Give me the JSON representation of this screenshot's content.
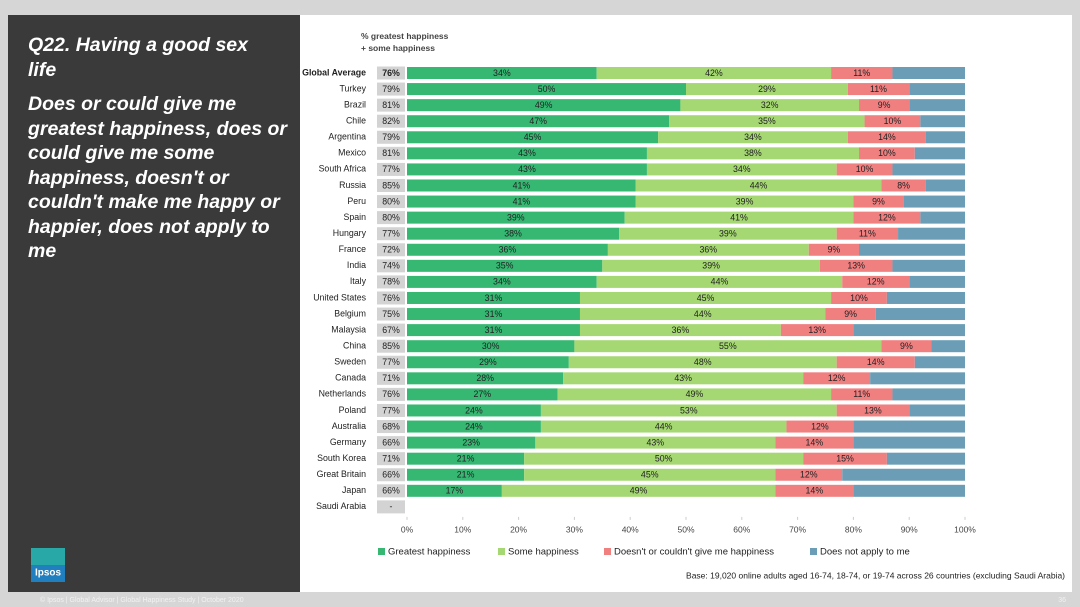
{
  "slide": {
    "title": "Q22. Having a good sex life",
    "question": "Does or could give me greatest happiness, does or could give me some happiness, doesn't or couldn't make me happy or happier, does not apply to me",
    "base_note": "Base: 19,020 online adults aged 16-74, 18-74, or 19-74 across 26 countries (excluding Saudi Arabia)",
    "footer": "© Ipsos | Global Advisor | Global Happiness Study | October 2020",
    "page_number": "36",
    "logo": "Ipsos"
  },
  "chart_data": {
    "type": "bar",
    "orientation": "horizontal",
    "stacked": true,
    "legend": "bottom",
    "score_header": "% greatest happiness + some happiness",
    "categories": [
      "Global Average",
      "Turkey",
      "Brazil",
      "Chile",
      "Argentina",
      "Mexico",
      "South Africa",
      "Russia",
      "Peru",
      "Spain",
      "Hungary",
      "France",
      "India",
      "Italy",
      "United States",
      "Belgium",
      "Malaysia",
      "China",
      "Sweden",
      "Canada",
      "Netherlands",
      "Poland",
      "Australia",
      "Germany",
      "South Korea",
      "Great Britain",
      "Japan",
      "Saudi Arabia"
    ],
    "scores": [
      76,
      79,
      81,
      82,
      79,
      81,
      77,
      85,
      80,
      80,
      77,
      72,
      74,
      78,
      76,
      75,
      67,
      85,
      77,
      71,
      76,
      77,
      68,
      66,
      71,
      66,
      66,
      null
    ],
    "score_labels": [
      "76%",
      "79%",
      "81%",
      "82%",
      "79%",
      "81%",
      "77%",
      "85%",
      "80%",
      "80%",
      "77%",
      "72%",
      "74%",
      "78%",
      "76%",
      "75%",
      "67%",
      "85%",
      "77%",
      "71%",
      "76%",
      "77%",
      "68%",
      "66%",
      "71%",
      "66%",
      "66%",
      "-"
    ],
    "series": [
      {
        "name": "Greatest happiness",
        "color": "#36b873",
        "values": [
          34,
          50,
          49,
          47,
          45,
          43,
          43,
          41,
          41,
          39,
          38,
          36,
          35,
          34,
          31,
          31,
          31,
          30,
          29,
          28,
          27,
          24,
          24,
          23,
          21,
          21,
          17,
          null
        ],
        "value_labels": [
          "34%",
          "50%",
          "49%",
          "47%",
          "45%",
          "43%",
          "43%",
          "41%",
          "41%",
          "39%",
          "38%",
          "36%",
          "35%",
          "34%",
          "31%",
          "31%",
          "31%",
          "30%",
          "29%",
          "28%",
          "27%",
          "24%",
          "24%",
          "23%",
          "21%",
          "21%",
          "17%",
          null
        ]
      },
      {
        "name": "Some happiness",
        "color": "#a5d873",
        "values": [
          42,
          29,
          32,
          35,
          34,
          38,
          34,
          44,
          39,
          41,
          39,
          36,
          39,
          44,
          45,
          44,
          36,
          55,
          48,
          43,
          49,
          53,
          44,
          43,
          50,
          45,
          49,
          null
        ],
        "value_labels": [
          "42%",
          "29%",
          "32%",
          "35%",
          "34%",
          "38%",
          "34%",
          "44%",
          "39%",
          "41%",
          "39%",
          "36%",
          "39%",
          "44%",
          "45%",
          "44%",
          "36%",
          "55%",
          "48%",
          "43%",
          "49%",
          "53%",
          "44%",
          "43%",
          "50%",
          "45%",
          "49%",
          null
        ]
      },
      {
        "name": "Doesn't or couldn't give me happiness",
        "color": "#f07f80",
        "values": [
          11,
          11,
          9,
          10,
          14,
          10,
          10,
          8,
          9,
          12,
          11,
          9,
          13,
          12,
          10,
          9,
          13,
          9,
          14,
          12,
          11,
          13,
          12,
          14,
          15,
          12,
          14,
          null
        ],
        "value_labels": [
          "11%",
          "11%",
          "9%",
          "10%",
          "14%",
          "10%",
          "10%",
          "8%",
          "9%",
          "12%",
          "11%",
          "9%",
          "13%",
          "12%",
          "10%",
          "9%",
          "13%",
          "9%",
          "14%",
          "12%",
          "11%",
          "13%",
          "12%",
          "14%",
          "15%",
          "12%",
          "14%",
          null
        ]
      },
      {
        "name": "Does not apply to me",
        "color": "#6b9eb6",
        "values": [
          13,
          10,
          10,
          8,
          7,
          9,
          13,
          7,
          11,
          8,
          12,
          19,
          13,
          10,
          14,
          16,
          20,
          6,
          9,
          17,
          13,
          10,
          20,
          20,
          14,
          22,
          20,
          null
        ]
      }
    ],
    "xlim": [
      0,
      100
    ],
    "xticks": [
      {
        "value": 0,
        "label": "0%"
      },
      {
        "value": 10,
        "label": "10%"
      },
      {
        "value": 20,
        "label": "20%"
      },
      {
        "value": 30,
        "label": "30%"
      },
      {
        "value": 40,
        "label": "40%"
      },
      {
        "value": 50,
        "label": "50%"
      },
      {
        "value": 60,
        "label": "60%"
      },
      {
        "value": 70,
        "label": "70%"
      },
      {
        "value": 80,
        "label": "80%"
      },
      {
        "value": 90,
        "label": "90%"
      },
      {
        "value": 100,
        "label": "100%"
      }
    ]
  }
}
